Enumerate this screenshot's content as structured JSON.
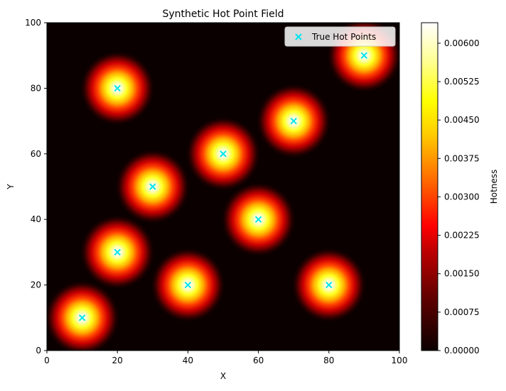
{
  "chart_data": {
    "type": "heatmap",
    "title": "Synthetic Hot Point Field",
    "xlabel": "X",
    "ylabel": "Y",
    "xlim": [
      0,
      100
    ],
    "ylim": [
      0,
      100
    ],
    "x_ticks": [
      0,
      20,
      40,
      60,
      80,
      100
    ],
    "y_ticks": [
      0,
      20,
      40,
      60,
      80,
      100
    ],
    "grid": false,
    "colormap": "hot",
    "background_color": "#0b0000",
    "legend": {
      "position": "top-right",
      "entries": [
        {
          "label": "True Hot Points",
          "marker": "x",
          "color": "#00e5ee"
        }
      ]
    },
    "hot_points": [
      {
        "x": 10,
        "y": 10
      },
      {
        "x": 20,
        "y": 30
      },
      {
        "x": 30,
        "y": 50
      },
      {
        "x": 20,
        "y": 80
      },
      {
        "x": 40,
        "y": 20
      },
      {
        "x": 50,
        "y": 60
      },
      {
        "x": 60,
        "y": 40
      },
      {
        "x": 70,
        "y": 70
      },
      {
        "x": 80,
        "y": 20
      },
      {
        "x": 90,
        "y": 90
      }
    ],
    "colorbar": {
      "label": "Hotness",
      "range": [
        0,
        0.0064
      ],
      "ticks": [
        "0.00000",
        "0.00075",
        "0.00150",
        "0.00225",
        "0.00300",
        "0.00375",
        "0.00450",
        "0.00525",
        "0.00600"
      ]
    }
  }
}
